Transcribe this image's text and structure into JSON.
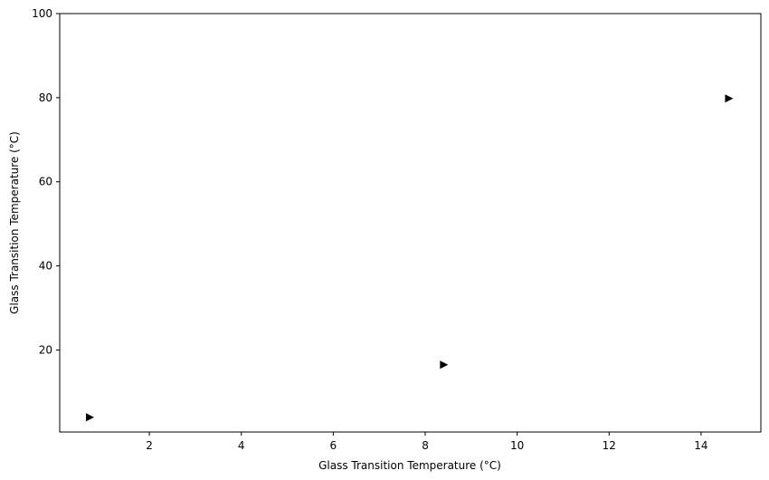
{
  "chart_data": {
    "type": "scatter",
    "title": "",
    "xlabel": "Glass Transition Temperature (°C)",
    "ylabel": "Glass Transition Temperature (°C)",
    "xlim": [
      0.05,
      15.3
    ],
    "ylim": [
      0.5,
      100
    ],
    "xticks": [
      2,
      4,
      6,
      8,
      10,
      12,
      14
    ],
    "yticks": [
      20,
      40,
      60,
      80,
      100
    ],
    "grid": false,
    "legend": "none",
    "marker": "triangle-right",
    "marker_color": "#000000",
    "series": [
      {
        "x": [
          0.7,
          8.4,
          14.6
        ],
        "y": [
          4.0,
          16.5,
          79.8
        ]
      }
    ]
  }
}
